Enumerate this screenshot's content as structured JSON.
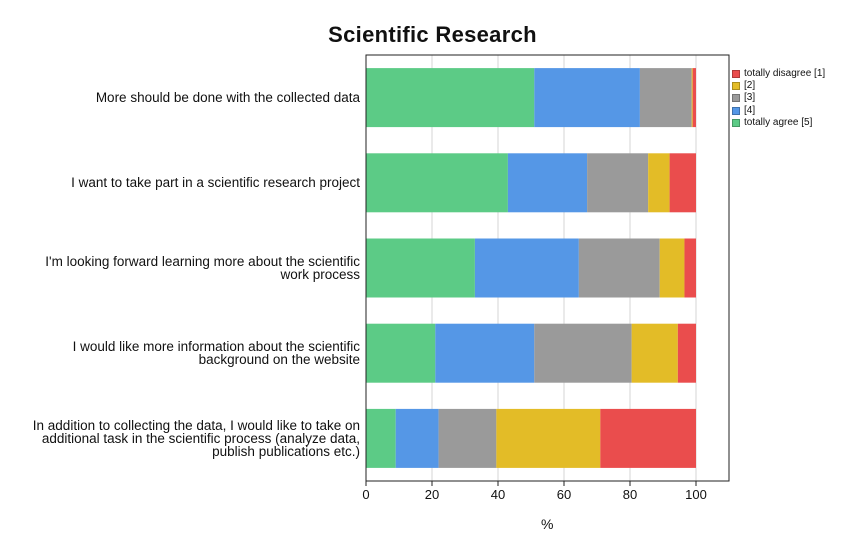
{
  "chart_data": {
    "type": "bar",
    "orientation": "horizontal",
    "stacked": true,
    "title": "Scientific Research",
    "xlabel": "%",
    "ylabel": "",
    "xlim": [
      0,
      110
    ],
    "xticks": [
      "0",
      "20",
      "40",
      "60",
      "80",
      "100"
    ],
    "grid": "vertical",
    "legend_position": "top-right",
    "categories": [
      "More should be done with the collected data",
      "I want to take part in a scientific research project",
      "I'm looking forward learning more about the scientific work process",
      "I would like more information about the scientific background on the website",
      "In addition to collecting the data, I would like to take on additional task in the scientific process (analyze data, publish publications etc.)"
    ],
    "category_lines": [
      [
        "More should be done with the collected data"
      ],
      [
        "I want to take part in a scientific research project"
      ],
      [
        "I'm looking forward learning more about the scientific",
        "work process"
      ],
      [
        "I would like more information about the scientific",
        "background on the website"
      ],
      [
        "In addition to collecting the data, I would like to take on",
        "additional task in the scientific process (analyze data,",
        "publish publications etc.)"
      ]
    ],
    "stack_order": [
      "totally agree [5]",
      "[4]",
      "[3]",
      "[2]",
      "totally disagree [1]"
    ],
    "series": [
      {
        "name": "totally agree [5]",
        "color": "#5ccb86",
        "values": [
          51,
          43,
          33,
          21,
          9
        ]
      },
      {
        "name": "[4]",
        "color": "#5597e6",
        "values": [
          32,
          24,
          31.5,
          30,
          13
        ]
      },
      {
        "name": "[3]",
        "color": "#9a9a9a",
        "values": [
          15.7,
          18.5,
          24.5,
          29.5,
          17.5
        ]
      },
      {
        "name": "[2]",
        "color": "#e3bc27",
        "values": [
          0.3,
          6.5,
          7.5,
          14,
          31.5
        ]
      },
      {
        "name": "totally disagree [1]",
        "color": "#ea4d4d",
        "values": [
          1,
          8,
          3.5,
          5.5,
          29
        ]
      }
    ],
    "legend": [
      "totally disagree [1]",
      "[2]",
      "[3]",
      "[4]",
      "totally agree [5]"
    ]
  }
}
